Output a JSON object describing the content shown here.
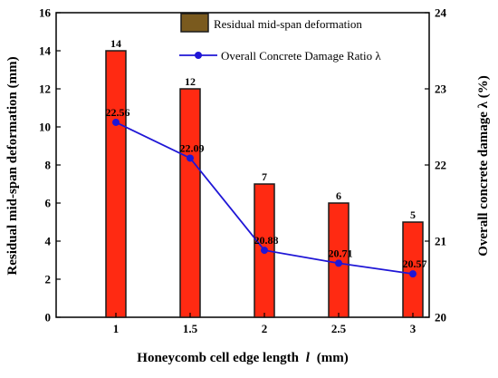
{
  "chart_data": {
    "type": "bar",
    "categories": [
      "1",
      "1.5",
      "2",
      "2.5",
      "3"
    ],
    "xlabel": "Honeycomb cell edge length",
    "xlabel_italic_var": "l",
    "xlabel_unit": "(mm)",
    "ylabel": "Residual mid-span deformation (mm)",
    "y2label": "Overall concrete damage λ (%)",
    "ylim": [
      0,
      16
    ],
    "y2lim": [
      20,
      24
    ],
    "yticks": [
      "0",
      "2",
      "4",
      "6",
      "8",
      "10",
      "12",
      "14",
      "16"
    ],
    "y2ticks": [
      "20",
      "21",
      "22",
      "23",
      "24"
    ],
    "grid": false,
    "legend_position": "top-right",
    "series": [
      {
        "name": "Residual mid-span deformation",
        "type": "bar",
        "axis": "left",
        "values": [
          14,
          12,
          7,
          6,
          5
        ],
        "labels": [
          "14",
          "12",
          "7",
          "6",
          "5"
        ],
        "color": "#ff2a12",
        "edge_color": "#1a1a1a"
      },
      {
        "name": "Overall Concrete Damage Ratio λ",
        "type": "line",
        "axis": "right",
        "values": [
          22.56,
          22.09,
          20.88,
          20.71,
          20.57
        ],
        "labels": [
          "22.56",
          "22.09",
          "20.88",
          "20.71",
          "20.57"
        ],
        "color": "#1f16d6",
        "marker": "circle"
      }
    ],
    "legend_bar_color": "#7a5a1e"
  }
}
